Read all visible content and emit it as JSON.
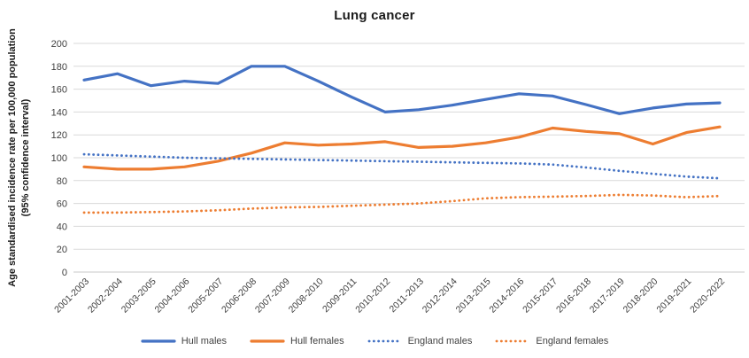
{
  "title": "Lung cancer",
  "y_axis_title_lines": {
    "line1": "Age standardised incidence rate per 100,000 population",
    "line2": "(95% confidence interval)"
  },
  "colors": {
    "blue": "#4472C4",
    "orange": "#ED7D31",
    "gridline": "#D9D9D9",
    "axis_text": "#404040"
  },
  "chart_data": {
    "type": "line",
    "title": "Lung cancer",
    "ylabel": "Age standardised incidence rate per 100,000 population (95% confidence interval)",
    "xlabel": "",
    "ylim": [
      0,
      200
    ],
    "ytick_step": 20,
    "grid": true,
    "legend_position": "bottom",
    "categories": [
      "2001-2003",
      "2002-2004",
      "2003-2005",
      "2004-2006",
      "2005-2007",
      "2006-2008",
      "2007-2009",
      "2008-2010",
      "2009-2011",
      "2010-2012",
      "2011-2013",
      "2012-2014",
      "2013-2015",
      "2014-2016",
      "2015-2017",
      "2016-2018",
      "2017-2019",
      "2018-2020",
      "2019-2021",
      "2020-2022"
    ],
    "series": [
      {
        "name": "Hull males",
        "color": "#4472C4",
        "style": "solid",
        "values": [
          168,
          173.5,
          163,
          167,
          165,
          180,
          180,
          167,
          153,
          140,
          142,
          146,
          151,
          156,
          154,
          146.5,
          138.5,
          143.5,
          147,
          148
        ]
      },
      {
        "name": "Hull females",
        "color": "#ED7D31",
        "style": "solid",
        "values": [
          92,
          90,
          90,
          92,
          97,
          104,
          113,
          111,
          112,
          114,
          109,
          110,
          113,
          118,
          126,
          123,
          121,
          112,
          122,
          127
        ]
      },
      {
        "name": "England males",
        "color": "#4472C4",
        "style": "dotted",
        "values": [
          103,
          102,
          101,
          100,
          99.5,
          99,
          98.5,
          98,
          97.5,
          97,
          96.5,
          96,
          95.5,
          95,
          94,
          91.5,
          88.5,
          86,
          83.5,
          82
        ]
      },
      {
        "name": "England females",
        "color": "#ED7D31",
        "style": "dotted",
        "values": [
          52,
          52,
          52.5,
          53,
          54,
          55.5,
          56.5,
          57,
          58,
          59,
          60,
          62,
          64.5,
          65.5,
          66,
          66.5,
          67.5,
          67,
          65.5,
          66.5
        ]
      }
    ]
  }
}
